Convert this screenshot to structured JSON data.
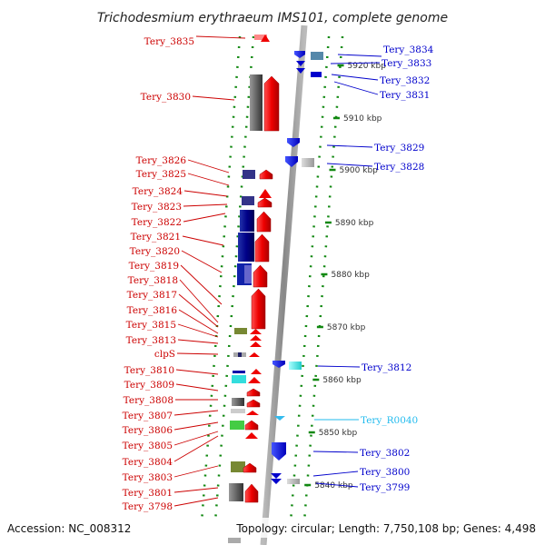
{
  "title": "Trichodesmium erythraeum IMS101, complete genome",
  "footer": {
    "accession": "Accession: NC_008312",
    "topology": "Topology: circular; Length: 7,750,108 bp; Genes: 4,498"
  },
  "colors": {
    "left_label": "#cc0000",
    "right_label": "#0000cc",
    "rna_label": "#22bbee",
    "tick": "#118811"
  },
  "kbp_labels": [
    "5920 kbp",
    "5910 kbp",
    "5900 kbp",
    "5890 kbp",
    "5880 kbp",
    "5870 kbp",
    "5860 kbp",
    "5850 kbp",
    "5840 kbp"
  ],
  "left_labels": [
    "Tery_3835",
    "Tery_3830",
    "Tery_3826",
    "Tery_3825",
    "Tery_3824",
    "Tery_3823",
    "Tery_3822",
    "Tery_3821",
    "Tery_3820",
    "Tery_3819",
    "Tery_3818",
    "Tery_3817",
    "Tery_3816",
    "Tery_3815",
    "Tery_3813",
    "clpS",
    "Tery_3810",
    "Tery_3809",
    "Tery_3808",
    "Tery_3807",
    "Tery_3806",
    "Tery_3805",
    "Tery_3804",
    "Tery_3803",
    "Tery_3801",
    "Tery_3798"
  ],
  "right_labels": [
    "Tery_3834",
    "Tery_3833",
    "Tery_3832",
    "Tery_3831",
    "Tery_3829",
    "Tery_3828",
    "Tery_3812",
    "Tery_R0040",
    "Tery_3802",
    "Tery_3800",
    "Tery_3799"
  ]
}
